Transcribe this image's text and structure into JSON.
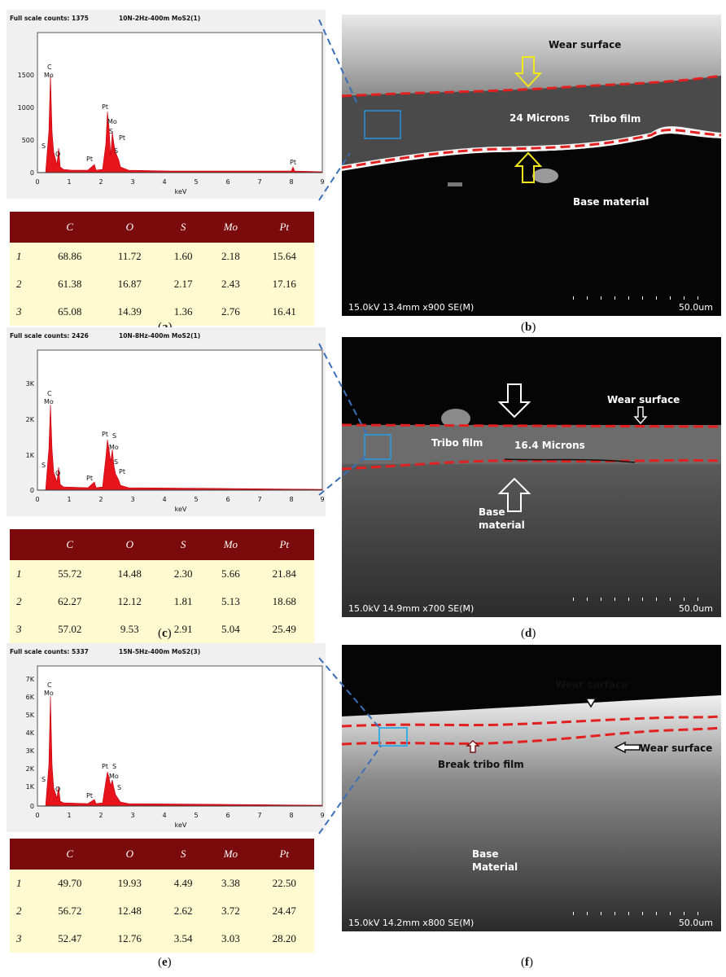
{
  "panels": [
    {
      "left_caption": "a",
      "right_caption": "b",
      "eds": {
        "full_scale": "Full scale counts: 1375",
        "sample": "10N-2Hz-400m MoS2(1)",
        "xlabel": "keV",
        "y_ticks": [
          "1500",
          "1000",
          "500",
          "0"
        ],
        "x_ticks": [
          "0",
          "1",
          "2",
          "3",
          "4",
          "5",
          "6",
          "7",
          "8",
          "9"
        ],
        "peak_labels": [
          "C",
          "Mo",
          "S",
          "O",
          "Pt",
          "Pt",
          "Mo",
          "S",
          "S",
          "Pt",
          "Pt"
        ]
      },
      "table": {
        "headers": [
          "C",
          "O",
          "S",
          "Mo",
          "Pt"
        ],
        "rows": [
          [
            "1",
            "68.86",
            "11.72",
            "1.60",
            "2.18",
            "15.64"
          ],
          [
            "2",
            "61.38",
            "16.87",
            "2.17",
            "2.43",
            "17.16"
          ],
          [
            "3",
            "65.08",
            "14.39",
            "1.36",
            "2.76",
            "16.41"
          ]
        ]
      },
      "sem": {
        "labels": [
          "Wear surface",
          "24 Microns",
          "Tribo film",
          "Base material"
        ],
        "info": "15.0kV 13.4mm x900 SE(M)",
        "scale": "50.0um"
      }
    },
    {
      "left_caption": "c",
      "right_caption": "d",
      "eds": {
        "full_scale": "Full scale counts: 2426",
        "sample": "10N-8Hz-400m MoS2(1)",
        "xlabel": "keV",
        "y_ticks": [
          "3K",
          "2K",
          "1K",
          "0"
        ],
        "x_ticks": [
          "0",
          "1",
          "2",
          "3",
          "4",
          "5",
          "6",
          "7",
          "8",
          "9"
        ],
        "peak_labels": [
          "C",
          "Mo",
          "S",
          "O",
          "Pt",
          "Pt",
          "S",
          "Mo",
          "S",
          "Pt"
        ]
      },
      "table": {
        "headers": [
          "C",
          "O",
          "S",
          "Mo",
          "Pt"
        ],
        "rows": [
          [
            "1",
            "55.72",
            "14.48",
            "2.30",
            "5.66",
            "21.84"
          ],
          [
            "2",
            "62.27",
            "12.12",
            "1.81",
            "5.13",
            "18.68"
          ],
          [
            "3",
            "57.02",
            "9.53",
            "2.91",
            "5.04",
            "25.49"
          ]
        ]
      },
      "sem": {
        "labels": [
          "Wear surface",
          "Tribo film",
          "16.4 Microns",
          "Base",
          "material"
        ],
        "info": "15.0kV 14.9mm x700 SE(M)",
        "scale": "50.0um"
      }
    },
    {
      "left_caption": "e",
      "right_caption": "f",
      "eds": {
        "full_scale": "Full scale counts: 5337",
        "sample": "15N-5Hz-400m MoS2(3)",
        "xlabel": "keV",
        "y_ticks": [
          "7K",
          "6K",
          "5K",
          "4K",
          "3K",
          "2K",
          "1K",
          "0"
        ],
        "x_ticks": [
          "0",
          "1",
          "2",
          "3",
          "4",
          "5",
          "6",
          "7",
          "8",
          "9"
        ],
        "peak_labels": [
          "C",
          "Mo",
          "S",
          "O",
          "Pt",
          "Pt",
          "S",
          "Mo",
          "S"
        ]
      },
      "table": {
        "headers": [
          "C",
          "O",
          "S",
          "Mo",
          "Pt"
        ],
        "rows": [
          [
            "1",
            "49.70",
            "19.93",
            "4.49",
            "3.38",
            "22.50"
          ],
          [
            "2",
            "56.72",
            "12.48",
            "2.62",
            "3.72",
            "24.47"
          ],
          [
            "3",
            "52.47",
            "12.76",
            "3.54",
            "3.03",
            "28.20"
          ]
        ]
      },
      "sem": {
        "labels": [
          "Wear surface",
          "Wear surface",
          "Break tribo film",
          "Base",
          "Material"
        ],
        "info": "15.0kV 14.2mm x800 SE(M)",
        "scale": "50.0um"
      }
    }
  ]
}
